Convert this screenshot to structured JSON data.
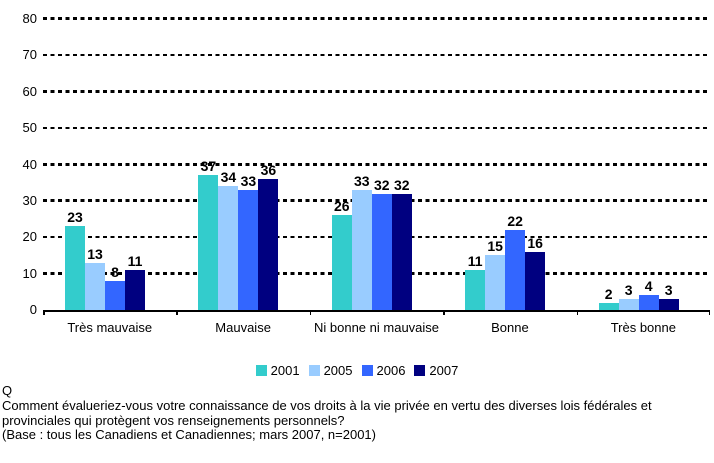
{
  "chart_data": {
    "type": "bar",
    "title": "",
    "xlabel": "",
    "ylabel": "",
    "ylim": [
      0,
      80
    ],
    "yticks": [
      0,
      10,
      20,
      30,
      40,
      50,
      60,
      70,
      80
    ],
    "grid": "horizontal dashed",
    "legend_position": "bottom",
    "categories": [
      "Très mauvaise",
      "Mauvaise",
      "Ni bonne ni mauvaise",
      "Bonne",
      "Très bonne"
    ],
    "series": [
      {
        "name": "2001",
        "color": "#33CCCC",
        "values": [
          23,
          37,
          26,
          11,
          2
        ]
      },
      {
        "name": "2005",
        "color": "#99CCFF",
        "values": [
          13,
          34,
          33,
          15,
          3
        ]
      },
      {
        "name": "2006",
        "color": "#3366FF",
        "values": [
          8,
          33,
          32,
          22,
          4
        ]
      },
      {
        "name": "2007",
        "color": "#000080",
        "values": [
          11,
          36,
          32,
          16,
          3
        ]
      }
    ]
  },
  "footer": {
    "q_label": "Q",
    "question": "Comment évalueriez-vous votre connaissance de vos droits à la vie privée en vertu des diverses lois fédérales et provinciales qui protègent vos renseignements personnels?",
    "base": "(Base : tous les Canadiens et Canadiennes; mars 2007, n=2001)"
  }
}
